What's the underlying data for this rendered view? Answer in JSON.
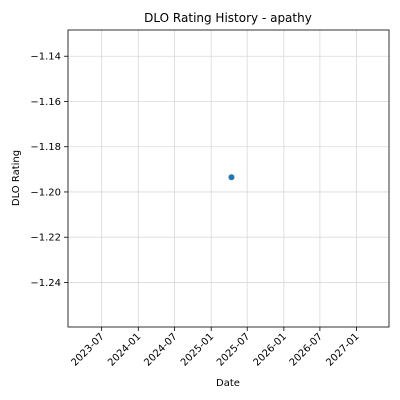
{
  "chart_data": {
    "type": "scatter",
    "title": "DLO Rating History - apathy",
    "xlabel": "Date",
    "ylabel": "DLO Rating",
    "x_ticks": [
      "2023-07",
      "2024-01",
      "2024-07",
      "2025-01",
      "2025-07",
      "2026-01",
      "2026-07",
      "2027-01"
    ],
    "y_ticks": [
      -1.14,
      -1.16,
      -1.18,
      -1.2,
      -1.22,
      -1.24
    ],
    "y_tick_labels": [
      "−1.14",
      "−1.16",
      "−1.18",
      "−1.20",
      "−1.22",
      "−1.24"
    ],
    "xlim": [
      "2023-01-13",
      "2027-06-13"
    ],
    "ylim": [
      -1.2597,
      -1.1284
    ],
    "grid": true,
    "points": [
      {
        "x": "2025-04-13",
        "y": -1.1935
      }
    ],
    "colors": {
      "point": "#1f77b4",
      "grid": "#d9d9d9",
      "axes": "#000000"
    }
  }
}
